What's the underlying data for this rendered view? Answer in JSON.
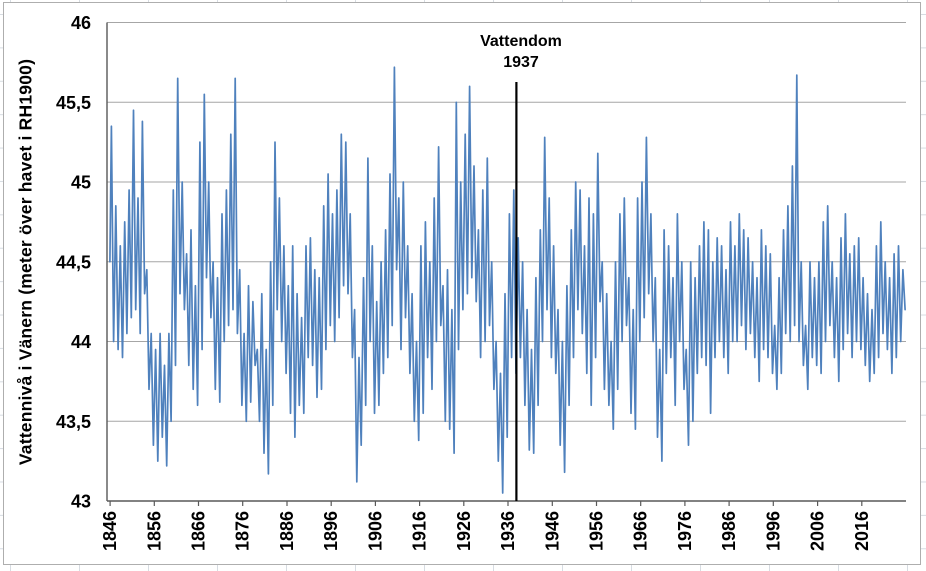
{
  "chart_data": {
    "type": "line",
    "y_axis_title": "Vattennivå i Vänern (meter över havet i RH1900)",
    "annotation": {
      "line1": "Vattendom",
      "line2": "1937",
      "x_year": 1937.9
    },
    "ylim": [
      43,
      46
    ],
    "xlim": [
      1845.3,
      2026
    ],
    "grid": true,
    "legend": "none",
    "y_ticks": [
      "46",
      "45,5",
      "45",
      "44,5",
      "44",
      "43,5",
      "43"
    ],
    "x_ticks": [
      "1846",
      "1856",
      "1866",
      "1876",
      "1886",
      "1896",
      "1906",
      "1916",
      "1926",
      "1936",
      "1946",
      "1956",
      "1966",
      "1976",
      "1986",
      "1996",
      "2006",
      "2016"
    ],
    "series": [
      {
        "name": "Vattennivå i Vänern",
        "color": "#4F81BD",
        "start_year": 1846,
        "start_value": 44.5,
        "yearly_max": [
          45.35,
          44.85,
          44.6,
          44.75,
          44.95,
          45.45,
          44.9,
          45.38,
          44.45,
          44.05,
          43.95,
          44.05,
          43.85,
          44.05,
          44.95,
          45.65,
          45.0,
          44.55,
          44.7,
          44.35,
          45.25,
          45.55,
          45.0,
          44.5,
          44.4,
          44.8,
          44.95,
          45.3,
          45.65,
          44.45,
          44.05,
          44.35,
          44.25,
          43.95,
          44.3,
          43.95,
          44.5,
          45.25,
          44.9,
          44.6,
          44.35,
          44.6,
          44.3,
          44.15,
          44.6,
          44.65,
          44.45,
          44.4,
          44.85,
          45.05,
          44.8,
          44.95,
          45.3,
          45.25,
          44.8,
          44.2,
          43.9,
          44.4,
          45.15,
          44.6,
          44.25,
          44.5,
          44.7,
          45.05,
          45.72,
          44.9,
          45.0,
          44.6,
          44.3,
          44.0,
          44.6,
          44.75,
          44.5,
          44.9,
          45.22,
          44.35,
          44.45,
          44.2,
          45.5,
          45.0,
          45.3,
          45.6,
          45.1,
          44.7,
          44.95,
          45.15,
          44.5,
          44.0,
          43.8,
          44.3,
          44.8,
          44.95,
          44.65,
          44.5,
          44.2,
          43.95,
          44.4,
          44.7,
          45.28,
          44.9,
          44.6,
          44.2,
          44.0,
          44.35,
          44.7,
          45.0,
          44.95,
          44.6,
          44.9,
          44.8,
          45.18,
          44.5,
          44.3,
          44.0,
          44.5,
          44.8,
          44.9,
          44.4,
          44.2,
          44.9,
          45.0,
          45.28,
          44.8,
          44.4,
          43.95,
          44.7,
          44.6,
          44.4,
          44.8,
          44.5,
          43.95,
          44.5,
          44.4,
          44.6,
          44.75,
          44.7,
          44.5,
          44.65,
          44.6,
          44.45,
          44.75,
          44.6,
          44.8,
          44.7,
          44.65,
          44.5,
          44.4,
          44.7,
          44.6,
          44.55,
          44.1,
          44.4,
          44.7,
          44.85,
          45.1,
          45.67,
          44.5,
          44.1,
          44.5,
          44.4,
          44.5,
          44.75,
          44.85,
          44.5,
          44.4,
          44.65,
          44.8,
          44.55,
          44.6,
          44.65,
          44.4,
          44.3,
          44.2,
          44.6,
          44.75,
          44.5,
          44.4,
          44.55,
          44.6,
          44.45
        ],
        "yearly_min": [
          44.0,
          43.95,
          43.9,
          44.05,
          44.15,
          44.2,
          44.05,
          44.3,
          43.7,
          43.35,
          43.25,
          43.4,
          43.22,
          43.5,
          43.85,
          44.3,
          44.2,
          43.85,
          43.7,
          43.6,
          43.95,
          44.4,
          44.15,
          43.7,
          43.62,
          44.0,
          44.1,
          44.2,
          44.05,
          43.6,
          43.5,
          43.62,
          43.85,
          43.5,
          43.3,
          43.17,
          43.6,
          44.2,
          44.0,
          43.8,
          43.55,
          43.4,
          43.6,
          43.55,
          43.9,
          43.85,
          43.65,
          43.7,
          43.95,
          44.1,
          44.0,
          44.15,
          44.35,
          44.3,
          43.9,
          43.12,
          43.35,
          43.6,
          44.0,
          43.55,
          43.6,
          43.8,
          43.9,
          44.1,
          44.45,
          43.95,
          44.15,
          43.8,
          43.5,
          43.38,
          43.55,
          43.9,
          43.7,
          44.0,
          44.1,
          43.5,
          43.45,
          43.3,
          43.95,
          44.2,
          44.3,
          44.4,
          44.25,
          43.9,
          44.0,
          44.1,
          43.7,
          43.25,
          43.05,
          43.4,
          43.9,
          43.8,
          43.9,
          43.6,
          43.32,
          43.3,
          43.6,
          44.0,
          44.2,
          43.9,
          43.8,
          43.35,
          43.18,
          43.6,
          43.9,
          44.2,
          44.05,
          43.8,
          43.6,
          43.9,
          44.25,
          43.7,
          43.6,
          43.45,
          43.7,
          44.0,
          44.1,
          43.55,
          43.45,
          44.0,
          44.15,
          44.3,
          44.0,
          43.4,
          43.25,
          43.8,
          43.9,
          43.6,
          44.0,
          43.7,
          43.35,
          43.5,
          43.8,
          43.9,
          43.85,
          43.55,
          43.9,
          44.0,
          43.9,
          43.8,
          44.0,
          44.0,
          44.1,
          43.95,
          44.05,
          43.9,
          43.75,
          43.95,
          43.9,
          43.8,
          43.7,
          43.8,
          44.05,
          44.0,
          44.1,
          44.0,
          43.85,
          43.7,
          43.9,
          43.85,
          43.8,
          44.0,
          44.1,
          43.9,
          43.75,
          43.95,
          44.05,
          43.9,
          44.0,
          43.95,
          43.85,
          43.75,
          43.8,
          43.9,
          44.05,
          43.95,
          43.8,
          43.9,
          44.0,
          44.2
        ]
      }
    ]
  }
}
